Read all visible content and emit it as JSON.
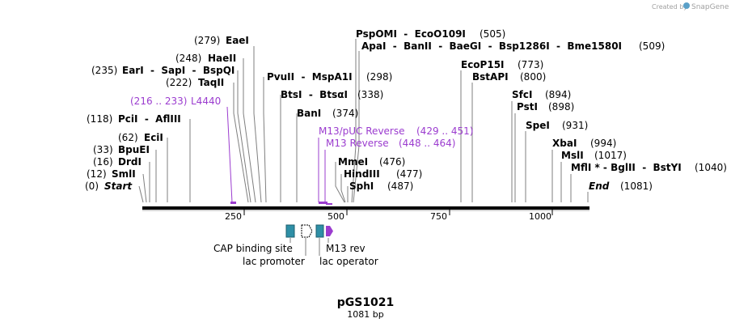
{
  "brand": {
    "created_by": "Created by",
    "app": "SnapGene",
    "accent": "#5aa0c8"
  },
  "plasmid": {
    "name": "pGS1021",
    "length_label": "1081 bp"
  },
  "colors": {
    "primer": "#9b3ccf",
    "feature_teal": "#2e8fa6",
    "line": "#7f7f7f",
    "backbone": "#000000"
  },
  "ruler": {
    "ticks": [
      "250",
      "500",
      "750",
      "1000"
    ]
  },
  "sites": [
    {
      "pos": "(279)",
      "name": "EaeI"
    },
    {
      "pos": "(248)",
      "name": "HaeII"
    },
    {
      "pos": "(235)",
      "name": "EarI  -  SapI  -  BspQI"
    },
    {
      "pos": "(222)",
      "name": "TaqII"
    },
    {
      "pos": "(118)",
      "name": "PciI  -  AflIII"
    },
    {
      "pos": "(62)",
      "name": "EciI"
    },
    {
      "pos": "(33)",
      "name": "BpuEI"
    },
    {
      "pos": "(16)",
      "name": "DrdI"
    },
    {
      "pos": "(12)",
      "name": "SmlI"
    },
    {
      "pos": "(0)",
      "name": "Start"
    },
    {
      "pos": "(298)",
      "name": "PvuII  -  MspA1I"
    },
    {
      "pos": "(338)",
      "name": "BtsI  -  BtsαI"
    },
    {
      "pos": "(374)",
      "name": "BanI"
    },
    {
      "pos": "(505)",
      "name": "PspOMI  -  EcoO109I"
    },
    {
      "pos": "(509)",
      "name": "ApaI  -  BanII  -  BaeGI  -  Bsp1286I  -  Bme1580I"
    },
    {
      "pos": "(476)",
      "name": "MmeI"
    },
    {
      "pos": "(477)",
      "name": "HindIII"
    },
    {
      "pos": "(487)",
      "name": "SphI"
    },
    {
      "pos": "(773)",
      "name": "EcoP15I"
    },
    {
      "pos": "(800)",
      "name": "BstAPI"
    },
    {
      "pos": "(894)",
      "name": "SfcI"
    },
    {
      "pos": "(898)",
      "name": "PstI"
    },
    {
      "pos": "(931)",
      "name": "SpeI"
    },
    {
      "pos": "(994)",
      "name": "XbaI"
    },
    {
      "pos": "(1017)",
      "name": "MslI"
    },
    {
      "pos": "(1040)",
      "name": "MflI * - BglII  -  BstYI"
    },
    {
      "pos": "(1081)",
      "name": "End"
    }
  ],
  "primers": [
    {
      "name": "L4440",
      "range": "(216 .. 233)"
    },
    {
      "name": "M13/pUC Reverse",
      "range": "(429 .. 451)"
    },
    {
      "name": "M13 Reverse",
      "range": "(448 .. 464)"
    }
  ],
  "features": {
    "cap": "CAP binding site",
    "lac_promoter": "lac promoter",
    "m13_rev": "M13 rev",
    "lac_operator": "lac operator"
  }
}
